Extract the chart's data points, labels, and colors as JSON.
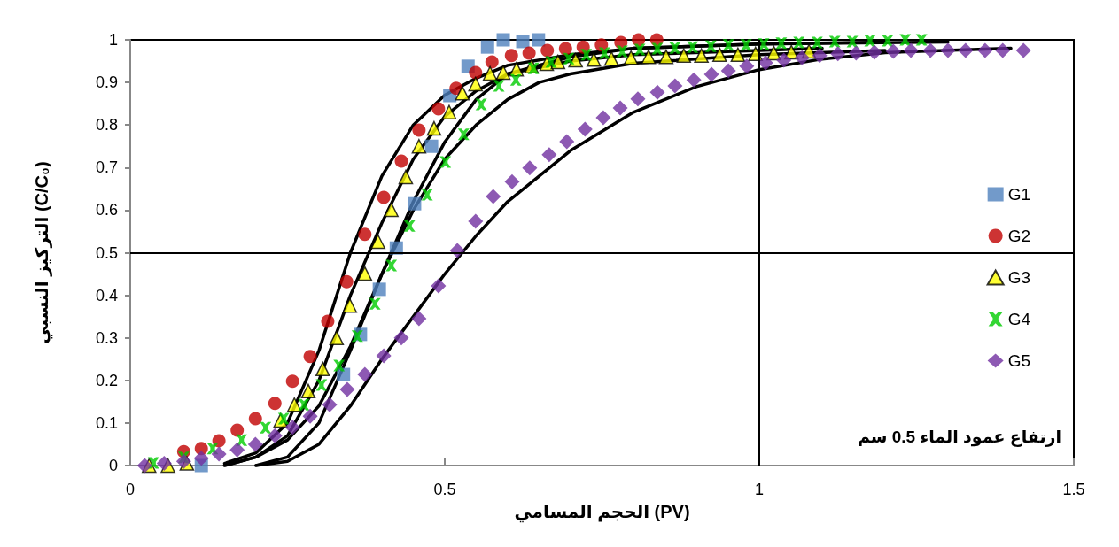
{
  "chart_data": {
    "type": "scatter",
    "xlabel": "الحجم المسامي (PV)",
    "ylabel": "التركيز النسبي (C/C₀)",
    "xlim": [
      0,
      1.5
    ],
    "xticks": [
      0,
      0.5,
      1,
      1.5
    ],
    "ylim": [
      0,
      1
    ],
    "yticks": [
      0,
      0.1,
      0.2,
      0.3,
      0.4,
      0.5,
      0.6,
      0.7,
      0.8,
      0.9,
      1
    ],
    "grid": false,
    "legend": "right",
    "annotations": [
      "ارتفاع عمود الماء 0.5 سم"
    ],
    "ref_lines": [
      {
        "axis": "x",
        "value": 1,
        "color": "#000000"
      },
      {
        "axis": "y",
        "value": 0.5,
        "color": "#000000"
      }
    ],
    "series": [
      {
        "name": "G1",
        "color": "#4f81bd",
        "marker": "square",
        "x": [
          0.113,
          0.339,
          0.366,
          0.396,
          0.423,
          0.452,
          0.479,
          0.508,
          0.537,
          0.568,
          0.593,
          0.624,
          0.649
        ],
        "values": [
          0,
          0.214,
          0.308,
          0.414,
          0.511,
          0.615,
          0.75,
          0.869,
          0.938,
          0.983,
          1.0,
          0.996,
          1.0
        ]
      },
      {
        "name": "G2",
        "color": "#c00000",
        "marker": "circle",
        "x": [
          0.085,
          0.113,
          0.141,
          0.17,
          0.199,
          0.23,
          0.258,
          0.286,
          0.314,
          0.344,
          0.373,
          0.403,
          0.431,
          0.459,
          0.49,
          0.518,
          0.549,
          0.575,
          0.606,
          0.634,
          0.663,
          0.692,
          0.72,
          0.749,
          0.78,
          0.808,
          0.837
        ],
        "values": [
          0.033,
          0.04,
          0.058,
          0.083,
          0.11,
          0.146,
          0.198,
          0.256,
          0.339,
          0.432,
          0.543,
          0.63,
          0.715,
          0.788,
          0.838,
          0.886,
          0.923,
          0.948,
          0.963,
          0.969,
          0.975,
          0.979,
          0.983,
          0.988,
          0.994,
          1.0,
          1.0
        ]
      },
      {
        "name": "G3",
        "color": "#ffff00",
        "marker": "triangle",
        "x": [
          0.03,
          0.06,
          0.09,
          0.239,
          0.261,
          0.283,
          0.306,
          0.328,
          0.349,
          0.373,
          0.394,
          0.415,
          0.438,
          0.459,
          0.483,
          0.507,
          0.528,
          0.549,
          0.572,
          0.593,
          0.614,
          0.638,
          0.662,
          0.68,
          0.708,
          0.737,
          0.765,
          0.796,
          0.824,
          0.852,
          0.88,
          0.908,
          0.937,
          0.966,
          0.994,
          1.023,
          1.051,
          1.079
        ],
        "values": [
          0,
          0,
          0.005,
          0.106,
          0.143,
          0.175,
          0.227,
          0.3,
          0.376,
          0.451,
          0.526,
          0.601,
          0.678,
          0.75,
          0.792,
          0.83,
          0.875,
          0.896,
          0.921,
          0.923,
          0.931,
          0.938,
          0.944,
          0.948,
          0.952,
          0.954,
          0.956,
          0.958,
          0.96,
          0.96,
          0.963,
          0.963,
          0.965,
          0.965,
          0.967,
          0.969,
          0.971,
          0.973
        ]
      },
      {
        "name": "G4",
        "color": "#00cc00",
        "marker": "cross",
        "x": [
          0.037,
          0.085,
          0.131,
          0.177,
          0.215,
          0.244,
          0.276,
          0.304,
          0.332,
          0.361,
          0.389,
          0.415,
          0.444,
          0.472,
          0.501,
          0.53,
          0.558,
          0.586,
          0.613,
          0.641,
          0.669,
          0.697,
          0.725,
          0.754,
          0.782,
          0.81,
          0.838,
          0.866,
          0.894,
          0.923,
          0.951,
          0.979,
          1.007,
          1.035,
          1.063,
          1.092,
          1.12,
          1.148,
          1.176,
          1.204,
          1.232,
          1.258
        ],
        "values": [
          0.006,
          0.019,
          0.04,
          0.06,
          0.089,
          0.11,
          0.143,
          0.189,
          0.235,
          0.304,
          0.38,
          0.47,
          0.563,
          0.636,
          0.713,
          0.778,
          0.848,
          0.892,
          0.906,
          0.933,
          0.948,
          0.956,
          0.965,
          0.969,
          0.973,
          0.977,
          0.979,
          0.981,
          0.983,
          0.985,
          0.988,
          0.988,
          0.99,
          0.992,
          0.994,
          0.994,
          0.996,
          0.996,
          0.998,
          0.998,
          1.0,
          1.0
        ]
      },
      {
        "name": "G5",
        "color": "#7030a0",
        "marker": "diamond",
        "x": [
          0.023,
          0.054,
          0.085,
          0.113,
          0.141,
          0.17,
          0.199,
          0.23,
          0.258,
          0.286,
          0.317,
          0.345,
          0.373,
          0.403,
          0.431,
          0.459,
          0.49,
          0.52,
          0.549,
          0.577,
          0.607,
          0.635,
          0.666,
          0.694,
          0.723,
          0.752,
          0.779,
          0.807,
          0.838,
          0.866,
          0.896,
          0.924,
          0.951,
          0.98,
          1.01,
          1.039,
          1.068,
          1.096,
          1.125,
          1.154,
          1.183,
          1.213,
          1.241,
          1.272,
          1.3,
          1.328,
          1.359,
          1.387,
          1.42
        ],
        "values": [
          0,
          0.005,
          0.01,
          0.017,
          0.027,
          0.037,
          0.05,
          0.07,
          0.09,
          0.116,
          0.143,
          0.179,
          0.214,
          0.258,
          0.3,
          0.345,
          0.422,
          0.505,
          0.574,
          0.632,
          0.667,
          0.699,
          0.73,
          0.761,
          0.79,
          0.817,
          0.84,
          0.861,
          0.877,
          0.892,
          0.906,
          0.919,
          0.927,
          0.938,
          0.946,
          0.952,
          0.958,
          0.963,
          0.967,
          0.969,
          0.971,
          0.973,
          0.975,
          0.975,
          0.975,
          0.975,
          0.975,
          0.975,
          0.975
        ]
      },
      {
        "type": "line",
        "color": "#000000",
        "marker": "none",
        "line_style": "solid",
        "x": [
          0.15,
          0.2,
          0.25,
          0.3,
          0.35,
          0.4,
          0.45,
          0.5,
          0.55,
          0.6,
          0.7,
          0.8,
          1.0,
          1.2
        ],
        "values": [
          0.005,
          0.03,
          0.1,
          0.27,
          0.5,
          0.68,
          0.8,
          0.87,
          0.91,
          0.94,
          0.965,
          0.98,
          0.99,
          0.995
        ]
      },
      {
        "type": "line",
        "color": "#000000",
        "marker": "none",
        "line_style": "solid",
        "x": [
          0.15,
          0.2,
          0.25,
          0.3,
          0.35,
          0.4,
          0.45,
          0.5,
          0.55,
          0.6,
          0.7,
          0.8,
          1.0,
          1.1
        ],
        "values": [
          0,
          0.02,
          0.07,
          0.2,
          0.4,
          0.57,
          0.72,
          0.82,
          0.88,
          0.92,
          0.95,
          0.965,
          0.975,
          0.98
        ]
      },
      {
        "type": "line",
        "color": "#000000",
        "marker": "none",
        "line_style": "solid",
        "x": [
          0.2,
          0.25,
          0.3,
          0.35,
          0.4,
          0.45,
          0.5,
          0.55,
          0.6,
          0.7,
          0.8,
          1.0,
          1.3
        ],
        "values": [
          0,
          0.02,
          0.1,
          0.27,
          0.45,
          0.62,
          0.76,
          0.86,
          0.92,
          0.96,
          0.98,
          0.99,
          0.995
        ]
      },
      {
        "type": "line",
        "color": "#000000",
        "marker": "none",
        "line_style": "solid",
        "x": [
          0.15,
          0.2,
          0.25,
          0.3,
          0.35,
          0.4,
          0.45,
          0.5,
          0.55,
          0.6,
          0.65,
          0.7,
          0.8,
          1.0,
          1.2
        ],
        "values": [
          0,
          0.02,
          0.06,
          0.14,
          0.28,
          0.45,
          0.6,
          0.72,
          0.8,
          0.86,
          0.9,
          0.92,
          0.945,
          0.965,
          0.975
        ]
      },
      {
        "type": "line",
        "color": "#000000",
        "marker": "none",
        "line_style": "solid",
        "x": [
          0.2,
          0.25,
          0.3,
          0.35,
          0.4,
          0.45,
          0.5,
          0.55,
          0.6,
          0.7,
          0.8,
          0.9,
          1.0,
          1.1,
          1.2,
          1.4
        ],
        "values": [
          0,
          0.01,
          0.05,
          0.14,
          0.25,
          0.35,
          0.45,
          0.54,
          0.62,
          0.74,
          0.83,
          0.89,
          0.93,
          0.955,
          0.97,
          0.98
        ]
      }
    ]
  }
}
